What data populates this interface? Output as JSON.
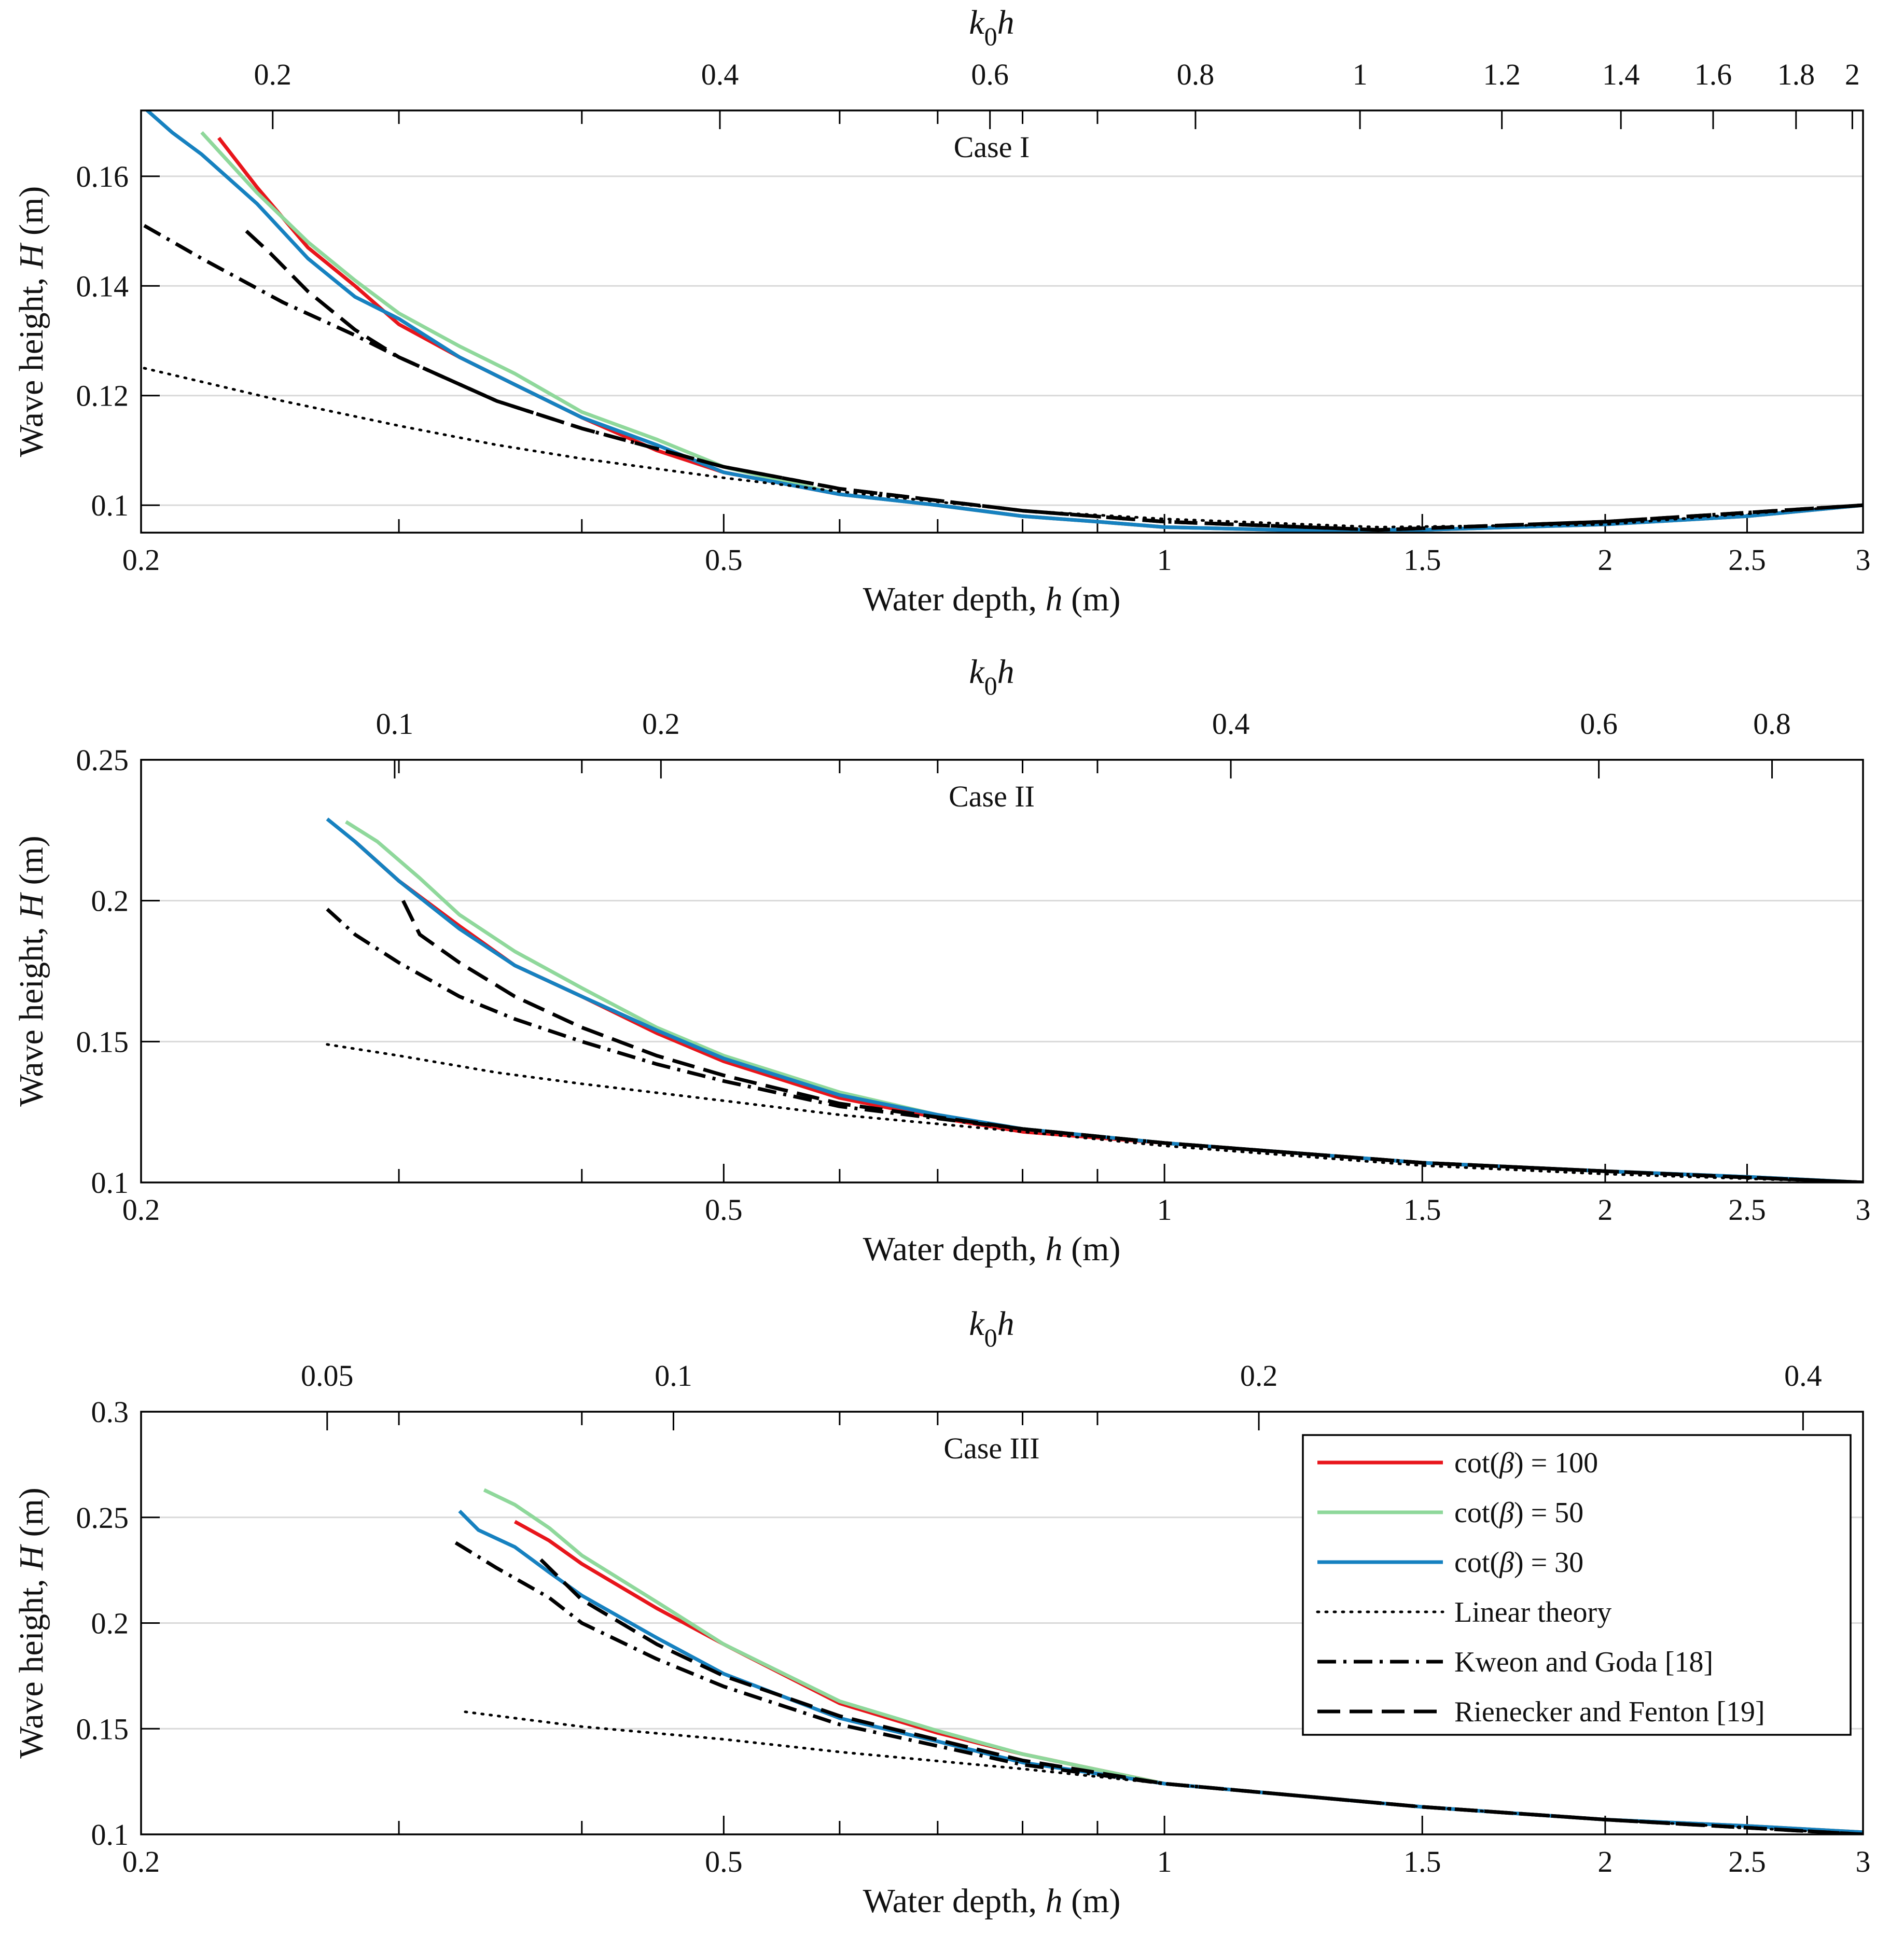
{
  "chart_data": [
    {
      "type": "line",
      "title": "Case I",
      "xlabel": "Water depth, h (m)",
      "ylabel": "Wave height, H (m)",
      "top_xlabel": "k0h",
      "x_scale": "log",
      "xlim": [
        0.2,
        3
      ],
      "ylim": [
        0.095,
        0.172
      ],
      "x_ticks": [
        0.2,
        0.5,
        1,
        1.5,
        2,
        2.5,
        3
      ],
      "y_ticks": [
        0.1,
        0.12,
        0.14,
        0.16
      ],
      "top_ticks": [
        {
          "label": "0.2",
          "h": 0.246
        },
        {
          "label": "0.4",
          "h": 0.497
        },
        {
          "label": "0.6",
          "h": 0.76
        },
        {
          "label": "0.8",
          "h": 1.05
        },
        {
          "label": "1",
          "h": 1.36
        },
        {
          "label": "1.2",
          "h": 1.7
        },
        {
          "label": "1.4",
          "h": 2.05
        },
        {
          "label": "1.6",
          "h": 2.37
        },
        {
          "label": "1.8",
          "h": 2.7
        },
        {
          "label": "2",
          "h": 2.95
        }
      ],
      "grid": "horizontal",
      "series": [
        {
          "name": "cot(β) = 100",
          "style": "red",
          "x": [
            0.226,
            0.24,
            0.26,
            0.28,
            0.3,
            0.33,
            0.36,
            0.4,
            0.45,
            0.5,
            0.6,
            0.7,
            0.8,
            0.9,
            1.0,
            1.2,
            1.5,
            2.0,
            2.5,
            3.0
          ],
          "y": [
            0.167,
            0.158,
            0.147,
            0.14,
            0.133,
            0.127,
            0.122,
            0.116,
            0.11,
            0.106,
            0.102,
            0.1,
            0.098,
            0.097,
            0.096,
            0.0955,
            0.0955,
            0.0965,
            0.098,
            0.1
          ]
        },
        {
          "name": "cot(β) = 50",
          "style": "lightgreen",
          "x": [
            0.22,
            0.24,
            0.26,
            0.28,
            0.3,
            0.33,
            0.36,
            0.4,
            0.45,
            0.5,
            0.6,
            0.7,
            0.8,
            0.9,
            1.0,
            1.2,
            1.5,
            2.0,
            2.5,
            3.0
          ],
          "y": [
            0.168,
            0.157,
            0.148,
            0.141,
            0.135,
            0.129,
            0.124,
            0.117,
            0.112,
            0.107,
            0.102,
            0.1,
            0.098,
            0.097,
            0.096,
            0.0955,
            0.0955,
            0.0965,
            0.098,
            0.1
          ]
        },
        {
          "name": "cot(β) = 30",
          "style": "blue",
          "x": [
            0.2,
            0.21,
            0.22,
            0.24,
            0.26,
            0.28,
            0.3,
            0.33,
            0.36,
            0.4,
            0.45,
            0.5,
            0.6,
            0.7,
            0.8,
            0.9,
            1.0,
            1.2,
            1.5,
            2.0,
            2.5,
            3.0
          ],
          "y": [
            0.173,
            0.168,
            0.164,
            0.155,
            0.145,
            0.138,
            0.134,
            0.127,
            0.122,
            0.116,
            0.111,
            0.106,
            0.102,
            0.1,
            0.098,
            0.097,
            0.096,
            0.0955,
            0.0955,
            0.0965,
            0.098,
            0.1
          ]
        },
        {
          "name": "Linear theory",
          "style": "dotted",
          "x": [
            0.201,
            0.25,
            0.3,
            0.35,
            0.4,
            0.5,
            0.6,
            0.8,
            1.0,
            1.4,
            2.0,
            3.0
          ],
          "y": [
            0.125,
            0.119,
            0.1145,
            0.111,
            0.1085,
            0.105,
            0.1025,
            0.099,
            0.0975,
            0.096,
            0.0965,
            0.1
          ]
        },
        {
          "name": "Kweon and Goda [18]",
          "style": "dashdot",
          "x": [
            0.201,
            0.22,
            0.25,
            0.28,
            0.3,
            0.35,
            0.4,
            0.5,
            0.6,
            0.8,
            1.0,
            1.4,
            2.0,
            3.0
          ],
          "y": [
            0.151,
            0.145,
            0.137,
            0.131,
            0.127,
            0.119,
            0.114,
            0.107,
            0.103,
            0.099,
            0.097,
            0.0955,
            0.097,
            0.1
          ]
        },
        {
          "name": "Rienecker and Fenton [19]",
          "style": "dashed",
          "x": [
            0.236,
            0.245,
            0.26,
            0.28,
            0.3,
            0.35,
            0.4,
            0.5,
            0.6,
            0.8,
            1.0,
            1.4,
            2.0,
            3.0
          ],
          "y": [
            0.15,
            0.146,
            0.139,
            0.132,
            0.127,
            0.119,
            0.114,
            0.107,
            0.103,
            0.099,
            0.097,
            0.0955,
            0.097,
            0.1
          ]
        }
      ]
    },
    {
      "type": "line",
      "title": "Case II",
      "xlabel": "Water depth, h (m)",
      "ylabel": "Wave height, H (m)",
      "top_xlabel": "k0h",
      "x_scale": "log",
      "xlim": [
        0.2,
        3
      ],
      "ylim": [
        0.1,
        0.25
      ],
      "x_ticks": [
        0.2,
        0.5,
        1,
        1.5,
        2,
        2.5,
        3
      ],
      "y_ticks": [
        0.1,
        0.15,
        0.2,
        0.25
      ],
      "top_ticks": [
        {
          "label": "0.1",
          "h": 0.298
        },
        {
          "label": "0.2",
          "h": 0.453
        },
        {
          "label": "0.4",
          "h": 1.11
        },
        {
          "label": "0.6",
          "h": 1.98
        },
        {
          "label": "0.8",
          "h": 2.6
        }
      ],
      "grid": "horizontal",
      "series": [
        {
          "name": "cot(β) = 100",
          "style": "red",
          "x": [
            0.28,
            0.3,
            0.33,
            0.36,
            0.4,
            0.45,
            0.5,
            0.6,
            0.7,
            0.8,
            1.0,
            1.5,
            2.0,
            2.5,
            3.0
          ],
          "y": [
            0.221,
            0.207,
            0.191,
            0.177,
            0.166,
            0.153,
            0.143,
            0.13,
            0.123,
            0.118,
            0.114,
            0.107,
            0.104,
            0.102,
            0.1
          ]
        },
        {
          "name": "cot(β) = 50",
          "style": "lightgreen",
          "x": [
            0.276,
            0.29,
            0.31,
            0.33,
            0.36,
            0.4,
            0.45,
            0.5,
            0.6,
            0.7,
            0.8,
            1.0,
            1.5,
            2.0,
            2.5,
            3.0
          ],
          "y": [
            0.228,
            0.221,
            0.208,
            0.195,
            0.182,
            0.169,
            0.155,
            0.145,
            0.132,
            0.124,
            0.119,
            0.114,
            0.107,
            0.104,
            0.102,
            0.1
          ]
        },
        {
          "name": "cot(β) = 30",
          "style": "blue",
          "x": [
            0.268,
            0.28,
            0.3,
            0.33,
            0.36,
            0.4,
            0.45,
            0.5,
            0.6,
            0.7,
            0.8,
            1.0,
            1.5,
            2.0,
            2.5,
            3.0
          ],
          "y": [
            0.229,
            0.221,
            0.207,
            0.19,
            0.177,
            0.166,
            0.154,
            0.144,
            0.131,
            0.124,
            0.119,
            0.114,
            0.107,
            0.104,
            0.102,
            0.1
          ]
        },
        {
          "name": "Linear theory",
          "style": "dotted",
          "x": [
            0.268,
            0.3,
            0.35,
            0.4,
            0.5,
            0.6,
            0.8,
            1.0,
            1.5,
            2.0,
            3.0
          ],
          "y": [
            0.149,
            0.145,
            0.139,
            0.135,
            0.129,
            0.124,
            0.118,
            0.113,
            0.106,
            0.103,
            0.1
          ]
        },
        {
          "name": "Kweon and Goda [18]",
          "style": "dashdot",
          "x": [
            0.268,
            0.28,
            0.3,
            0.33,
            0.36,
            0.4,
            0.45,
            0.5,
            0.6,
            0.8,
            1.0,
            1.5,
            2.0,
            3.0
          ],
          "y": [
            0.197,
            0.188,
            0.178,
            0.166,
            0.158,
            0.15,
            0.142,
            0.136,
            0.127,
            0.119,
            0.114,
            0.107,
            0.104,
            0.1
          ]
        },
        {
          "name": "Rienecker and Fenton [19]",
          "style": "dashed",
          "x": [
            0.302,
            0.31,
            0.33,
            0.36,
            0.4,
            0.45,
            0.5,
            0.6,
            0.8,
            1.0,
            1.5,
            2.0,
            3.0
          ],
          "y": [
            0.2,
            0.188,
            0.178,
            0.166,
            0.155,
            0.145,
            0.138,
            0.128,
            0.119,
            0.114,
            0.107,
            0.104,
            0.1
          ]
        }
      ]
    },
    {
      "type": "line",
      "title": "Case III",
      "xlabel": "Water depth, h (m)",
      "ylabel": "Wave height, H (m)",
      "top_xlabel": "k0h",
      "x_scale": "log",
      "xlim": [
        0.2,
        3
      ],
      "ylim": [
        0.1,
        0.3
      ],
      "x_ticks": [
        0.2,
        0.5,
        1,
        1.5,
        2,
        2.5,
        3
      ],
      "y_ticks": [
        0.1,
        0.15,
        0.2,
        0.25,
        0.3
      ],
      "top_ticks": [
        {
          "label": "0.05",
          "h": 0.268
        },
        {
          "label": "0.1",
          "h": 0.462
        },
        {
          "label": "0.2",
          "h": 1.16
        },
        {
          "label": "0.4",
          "h": 2.73
        }
      ],
      "grid": "horizontal",
      "series": [
        {
          "name": "cot(β) = 100",
          "style": "red",
          "x": [
            0.36,
            0.38,
            0.4,
            0.45,
            0.5,
            0.6,
            0.7,
            0.8,
            1.0,
            1.5,
            2.0,
            2.5,
            3.0
          ],
          "y": [
            0.248,
            0.239,
            0.228,
            0.207,
            0.19,
            0.162,
            0.148,
            0.138,
            0.124,
            0.113,
            0.107,
            0.104,
            0.101
          ]
        },
        {
          "name": "cot(β) = 50",
          "style": "lightgreen",
          "x": [
            0.343,
            0.36,
            0.38,
            0.4,
            0.45,
            0.5,
            0.6,
            0.7,
            0.8,
            1.0,
            1.5,
            2.0,
            2.5,
            3.0
          ],
          "y": [
            0.263,
            0.256,
            0.245,
            0.232,
            0.21,
            0.19,
            0.163,
            0.149,
            0.138,
            0.124,
            0.113,
            0.107,
            0.104,
            0.101
          ]
        },
        {
          "name": "cot(β) = 30",
          "style": "blue",
          "x": [
            0.33,
            0.34,
            0.36,
            0.38,
            0.4,
            0.45,
            0.5,
            0.6,
            0.7,
            0.8,
            1.0,
            1.5,
            2.0,
            2.5,
            3.0
          ],
          "y": [
            0.253,
            0.244,
            0.236,
            0.224,
            0.213,
            0.193,
            0.176,
            0.155,
            0.144,
            0.134,
            0.124,
            0.113,
            0.107,
            0.104,
            0.101
          ]
        },
        {
          "name": "Linear theory",
          "style": "dotted",
          "x": [
            0.333,
            0.4,
            0.5,
            0.6,
            0.8,
            1.0,
            1.5,
            2.0,
            3.0
          ],
          "y": [
            0.158,
            0.151,
            0.145,
            0.139,
            0.131,
            0.124,
            0.113,
            0.107,
            0.1
          ]
        },
        {
          "name": "Kweon and Goda [18]",
          "style": "dashdot",
          "x": [
            0.328,
            0.35,
            0.38,
            0.4,
            0.45,
            0.5,
            0.6,
            0.8,
            1.0,
            1.5,
            2.0,
            3.0
          ],
          "y": [
            0.238,
            0.226,
            0.212,
            0.2,
            0.183,
            0.17,
            0.152,
            0.133,
            0.124,
            0.113,
            0.107,
            0.1
          ]
        },
        {
          "name": "Rienecker and Fenton [19]",
          "style": "dashed",
          "x": [
            0.375,
            0.4,
            0.45,
            0.5,
            0.6,
            0.8,
            1.0,
            1.5,
            2.0,
            3.0
          ],
          "y": [
            0.23,
            0.211,
            0.19,
            0.175,
            0.156,
            0.135,
            0.124,
            0.113,
            0.107,
            0.1
          ]
        }
      ],
      "legend": {
        "placement": "top-right",
        "entries": [
          {
            "label": "cot(β) = 100",
            "style": "red"
          },
          {
            "label": "cot(β) = 50",
            "style": "lightgreen"
          },
          {
            "label": "cot(β) = 30",
            "style": "blue"
          },
          {
            "label": "Linear theory",
            "style": "dotted"
          },
          {
            "label": "Kweon and Goda [18]",
            "style": "dashdot"
          },
          {
            "label": "Rienecker and Fenton [19]",
            "style": "dashed"
          }
        ]
      }
    }
  ],
  "styles": {
    "red": {
      "color": "#e8151b",
      "dash": ""
    },
    "lightgreen": {
      "color": "#8fd89b",
      "dash": ""
    },
    "blue": {
      "color": "#1681c0",
      "dash": ""
    },
    "dotted": {
      "color": "#000000",
      "dash": "3 13"
    },
    "dashdot": {
      "color": "#000000",
      "dash": "36 14 6 14"
    },
    "dashed": {
      "color": "#000000",
      "dash": "44 18"
    }
  },
  "grid_color": "#d9d9d9"
}
